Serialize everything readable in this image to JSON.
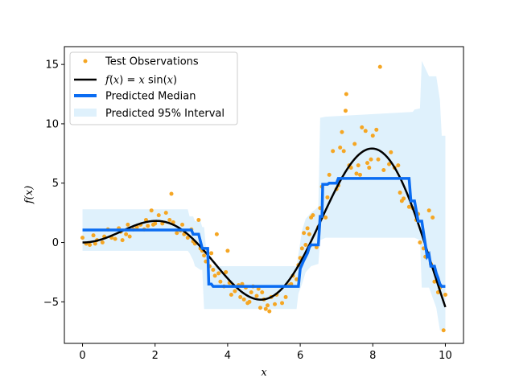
{
  "chart_data": {
    "type": "scatter",
    "title": "",
    "xlabel": "x",
    "ylabel": "f(x)",
    "xlim": [
      -0.5,
      10.5
    ],
    "ylim": [
      -8.5,
      16.5
    ],
    "x_ticks": [
      0,
      2,
      4,
      6,
      8,
      10
    ],
    "y_ticks": [
      -5,
      0,
      5,
      10,
      15
    ],
    "x_tick_labels": [
      "0",
      "2",
      "4",
      "6",
      "8",
      "10"
    ],
    "y_tick_labels": [
      "−5",
      "0",
      "5",
      "10",
      "15"
    ],
    "grid": false,
    "legend_position": "top-left",
    "legend": [
      {
        "key": "observations",
        "label": "Test Observations"
      },
      {
        "key": "true_function",
        "label_parts": [
          "f",
          "(",
          "x",
          ") = ",
          "x",
          " sin(",
          "x",
          ")"
        ]
      },
      {
        "key": "median",
        "label": "Predicted Median"
      },
      {
        "key": "interval",
        "label": "Predicted 95% Interval"
      }
    ],
    "colors": {
      "observations": "#f5a623",
      "true_function": "#000000",
      "median": "#0a6cf2",
      "interval": "#dff1fc"
    },
    "observations": [
      [
        0.0,
        0.4
      ],
      [
        0.1,
        -0.1
      ],
      [
        0.2,
        -0.2
      ],
      [
        0.3,
        0.6
      ],
      [
        0.35,
        -0.1
      ],
      [
        0.4,
        0.2
      ],
      [
        0.55,
        0.0
      ],
      [
        0.6,
        0.5
      ],
      [
        0.7,
        1.1
      ],
      [
        0.8,
        0.4
      ],
      [
        0.9,
        0.3
      ],
      [
        1.0,
        1.2
      ],
      [
        1.05,
        0.9
      ],
      [
        1.1,
        0.2
      ],
      [
        1.2,
        0.7
      ],
      [
        1.25,
        1.5
      ],
      [
        1.3,
        0.5
      ],
      [
        1.4,
        1.1
      ],
      [
        1.5,
        1.3
      ],
      [
        1.6,
        1.5
      ],
      [
        1.7,
        1.1
      ],
      [
        1.75,
        1.9
      ],
      [
        1.8,
        1.4
      ],
      [
        1.9,
        2.7
      ],
      [
        1.95,
        1.5
      ],
      [
        2.0,
        1.6
      ],
      [
        2.1,
        2.3
      ],
      [
        2.2,
        1.6
      ],
      [
        2.3,
        2.5
      ],
      [
        2.4,
        1.9
      ],
      [
        2.45,
        4.1
      ],
      [
        2.5,
        1.7
      ],
      [
        2.6,
        0.8
      ],
      [
        2.7,
        1.0
      ],
      [
        2.75,
        1.5
      ],
      [
        2.8,
        0.7
      ],
      [
        2.9,
        0.4
      ],
      [
        3.0,
        1.1
      ],
      [
        3.05,
        0.1
      ],
      [
        3.1,
        -0.1
      ],
      [
        3.2,
        1.9
      ],
      [
        3.25,
        -0.5
      ],
      [
        3.3,
        -0.7
      ],
      [
        3.35,
        -1.1
      ],
      [
        3.4,
        -1.6
      ],
      [
        3.5,
        -2.0
      ],
      [
        3.55,
        -0.9
      ],
      [
        3.6,
        -2.3
      ],
      [
        3.65,
        -2.8
      ],
      [
        3.7,
        0.7
      ],
      [
        3.75,
        -2.6
      ],
      [
        3.8,
        -3.3
      ],
      [
        3.9,
        -3.7
      ],
      [
        3.95,
        -2.5
      ],
      [
        4.0,
        -0.7
      ],
      [
        4.05,
        -3.4
      ],
      [
        4.1,
        -4.4
      ],
      [
        4.15,
        -3.6
      ],
      [
        4.2,
        -4.1
      ],
      [
        4.3,
        -3.6
      ],
      [
        4.35,
        -4.6
      ],
      [
        4.4,
        -3.5
      ],
      [
        4.45,
        -4.8
      ],
      [
        4.5,
        -3.8
      ],
      [
        4.55,
        -5.1
      ],
      [
        4.6,
        -5.0
      ],
      [
        4.65,
        -4.2
      ],
      [
        4.7,
        -3.7
      ],
      [
        4.8,
        -4.5
      ],
      [
        4.85,
        -3.9
      ],
      [
        4.9,
        -5.5
      ],
      [
        4.95,
        -4.2
      ],
      [
        5.0,
        -4.8
      ],
      [
        5.05,
        -5.6
      ],
      [
        5.1,
        -5.3
      ],
      [
        5.15,
        -5.8
      ],
      [
        5.2,
        -4.6
      ],
      [
        5.3,
        -5.2
      ],
      [
        5.35,
        -4.4
      ],
      [
        5.5,
        -5.1
      ],
      [
        5.6,
        -4.6
      ],
      [
        5.7,
        -3.6
      ],
      [
        5.75,
        -3.5
      ],
      [
        5.8,
        -2.8
      ],
      [
        5.9,
        -3.1
      ],
      [
        5.95,
        -1.9
      ],
      [
        6.0,
        -1.3
      ],
      [
        6.05,
        -0.5
      ],
      [
        6.1,
        0.8
      ],
      [
        6.15,
        -0.2
      ],
      [
        6.2,
        1.2
      ],
      [
        6.25,
        0.7
      ],
      [
        6.3,
        2.1
      ],
      [
        6.35,
        2.3
      ],
      [
        6.45,
        -0.4
      ],
      [
        6.5,
        1.3
      ],
      [
        6.55,
        2.9
      ],
      [
        6.6,
        4.7
      ],
      [
        6.7,
        2.1
      ],
      [
        6.75,
        3.8
      ],
      [
        6.8,
        5.7
      ],
      [
        6.9,
        7.7
      ],
      [
        7.0,
        4.5
      ],
      [
        7.05,
        4.8
      ],
      [
        7.1,
        8.0
      ],
      [
        7.15,
        9.3
      ],
      [
        7.2,
        7.7
      ],
      [
        7.25,
        11.1
      ],
      [
        7.27,
        12.5
      ],
      [
        7.35,
        6.5
      ],
      [
        7.4,
        6.3
      ],
      [
        7.5,
        8.3
      ],
      [
        7.55,
        5.8
      ],
      [
        7.6,
        6.5
      ],
      [
        7.65,
        5.7
      ],
      [
        7.7,
        9.7
      ],
      [
        7.8,
        9.4
      ],
      [
        7.85,
        6.7
      ],
      [
        7.9,
        6.3
      ],
      [
        7.95,
        7.0
      ],
      [
        8.0,
        9.0
      ],
      [
        8.1,
        9.5
      ],
      [
        8.15,
        7.0
      ],
      [
        8.2,
        14.8
      ],
      [
        8.3,
        6.1
      ],
      [
        8.45,
        6.6
      ],
      [
        8.5,
        7.6
      ],
      [
        8.6,
        6.3
      ],
      [
        8.7,
        6.5
      ],
      [
        8.75,
        4.2
      ],
      [
        8.8,
        3.5
      ],
      [
        8.85,
        3.7
      ],
      [
        9.0,
        3.0
      ],
      [
        9.1,
        2.9
      ],
      [
        9.2,
        1.9
      ],
      [
        9.25,
        2.4
      ],
      [
        9.3,
        0.0
      ],
      [
        9.4,
        -0.5
      ],
      [
        9.45,
        -1.2
      ],
      [
        9.55,
        2.7
      ],
      [
        9.6,
        -1.8
      ],
      [
        9.65,
        2.1
      ],
      [
        9.7,
        -3.3
      ],
      [
        9.8,
        -4.2
      ],
      [
        9.85,
        -3.8
      ],
      [
        9.95,
        -7.4
      ],
      [
        10.0,
        -4.4
      ]
    ],
    "true_function": {
      "expression": "x*sin(x)",
      "x_range": [
        0,
        10
      ]
    },
    "median": [
      [
        0.0,
        1.05
      ],
      [
        3.0,
        1.05
      ],
      [
        3.05,
        0.7
      ],
      [
        3.2,
        0.7
      ],
      [
        3.3,
        -0.5
      ],
      [
        3.45,
        -0.5
      ],
      [
        3.48,
        -3.5
      ],
      [
        3.55,
        -3.5
      ],
      [
        3.6,
        -3.7
      ],
      [
        5.95,
        -3.7
      ],
      [
        6.0,
        -2.2
      ],
      [
        6.1,
        -1.5
      ],
      [
        6.2,
        -0.9
      ],
      [
        6.25,
        -0.4
      ],
      [
        6.3,
        -0.2
      ],
      [
        6.5,
        -0.2
      ],
      [
        6.55,
        2.2
      ],
      [
        6.6,
        2.2
      ],
      [
        6.62,
        4.9
      ],
      [
        6.75,
        4.9
      ],
      [
        6.8,
        5.0
      ],
      [
        7.0,
        5.0
      ],
      [
        7.05,
        5.4
      ],
      [
        9.0,
        5.4
      ],
      [
        9.05,
        3.5
      ],
      [
        9.15,
        3.5
      ],
      [
        9.25,
        1.8
      ],
      [
        9.35,
        1.8
      ],
      [
        9.4,
        0.8
      ],
      [
        9.45,
        -0.2
      ],
      [
        9.5,
        -1.2
      ],
      [
        9.55,
        -1.0
      ],
      [
        9.6,
        -2.0
      ],
      [
        9.7,
        -2.0
      ],
      [
        9.75,
        -2.6
      ],
      [
        9.8,
        -3.0
      ],
      [
        9.85,
        -3.5
      ],
      [
        9.9,
        -3.7
      ],
      [
        10.0,
        -3.7
      ]
    ],
    "interval": [
      [
        0.0,
        -0.7,
        2.8
      ],
      [
        2.9,
        -0.7,
        2.8
      ],
      [
        2.95,
        -0.9,
        2.2
      ],
      [
        3.05,
        -1.5,
        2.2
      ],
      [
        3.1,
        -2.0,
        1.8
      ],
      [
        3.25,
        -2.3,
        1.8
      ],
      [
        3.3,
        -2.3,
        1.3
      ],
      [
        3.35,
        -5.6,
        1.3
      ],
      [
        3.45,
        -5.6,
        -2.0
      ],
      [
        5.9,
        -5.6,
        -2.0
      ],
      [
        5.95,
        -4.3,
        -1.0
      ],
      [
        6.05,
        -3.5,
        1.0
      ],
      [
        6.15,
        -2.5,
        2.0
      ],
      [
        6.3,
        -2.0,
        2.5
      ],
      [
        6.5,
        -1.8,
        3.0
      ],
      [
        6.55,
        0.2,
        10.5
      ],
      [
        6.7,
        0.4,
        10.6
      ],
      [
        9.1,
        0.4,
        11.0
      ],
      [
        9.15,
        0.4,
        11.2
      ],
      [
        9.3,
        0.2,
        11.3
      ],
      [
        9.35,
        -3.8,
        15.3
      ],
      [
        9.55,
        -3.8,
        14.0
      ],
      [
        9.75,
        -5.5,
        14.0
      ],
      [
        9.85,
        -7.4,
        12.0
      ],
      [
        9.9,
        -7.4,
        9.0
      ],
      [
        10.0,
        -7.4,
        9.0
      ]
    ]
  }
}
